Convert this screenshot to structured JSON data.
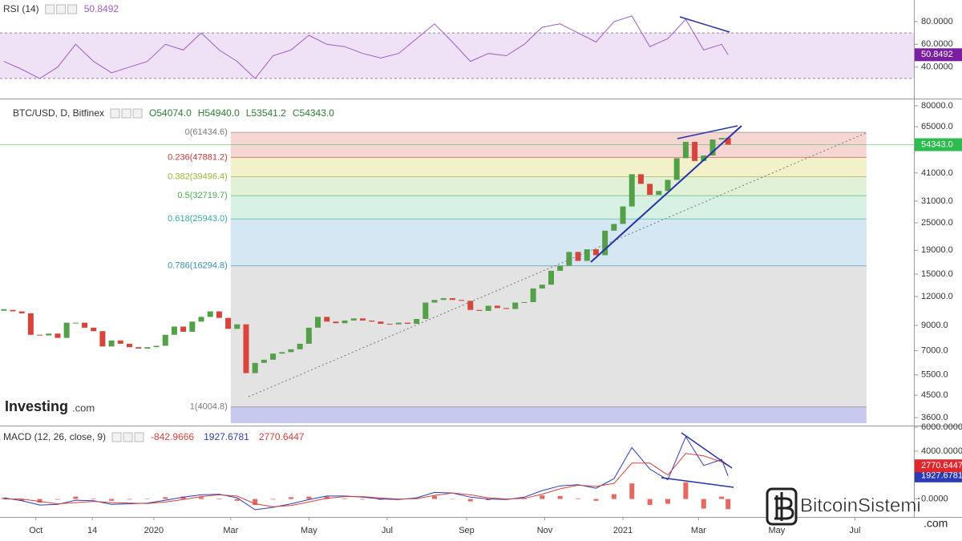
{
  "chart_data": [
    {
      "type": "line",
      "title": "RSI (14)",
      "x": [
        "2019-09-06",
        "2019-09-20",
        "2019-10-04",
        "2019-10-18",
        "2019-11-01",
        "2019-11-15",
        "2019-11-29",
        "2019-12-13",
        "2019-12-27",
        "2020-01-10",
        "2020-01-24",
        "2020-02-07",
        "2020-02-21",
        "2020-03-06",
        "2020-03-20",
        "2020-04-03",
        "2020-04-17",
        "2020-05-01",
        "2020-05-15",
        "2020-05-29",
        "2020-06-12",
        "2020-06-26",
        "2020-07-10",
        "2020-07-24",
        "2020-08-07",
        "2020-08-21",
        "2020-09-04",
        "2020-09-18",
        "2020-10-02",
        "2020-10-16",
        "2020-10-30",
        "2020-11-13",
        "2020-11-27",
        "2020-12-11",
        "2020-12-25",
        "2021-01-08",
        "2021-01-22",
        "2021-02-05",
        "2021-02-19",
        "2021-03-05",
        "2021-03-19",
        "2021-03-24"
      ],
      "series": [
        {
          "name": "RSI",
          "color": "#a05cc8",
          "badge": true,
          "badge_color": "#7b1fa2",
          "values": [
            45,
            38,
            30,
            40,
            60,
            45,
            35,
            40,
            45,
            60,
            55,
            70,
            55,
            45,
            30,
            50,
            55,
            68,
            60,
            58,
            52,
            48,
            52,
            65,
            78,
            62,
            45,
            52,
            50,
            60,
            75,
            78,
            70,
            62,
            80,
            85,
            58,
            65,
            82,
            55,
            60,
            50.8492
          ]
        }
      ],
      "band": [
        30,
        70
      ],
      "band_color": "#efe2f6",
      "xlim": [
        "2019-09-03",
        "2021-08-16"
      ],
      "ylim": [
        13,
        99
      ],
      "yticks": [
        {
          "value": 80,
          "label": "80.0000"
        },
        {
          "value": 60,
          "label": "60.0000"
        },
        {
          "value": 40,
          "label": "40.0000"
        }
      ]
    },
    {
      "type": "candlestick",
      "title": "BTC/USD, D, Bitfinex",
      "last_ohlc": [
        54074.0,
        54940.0,
        53541.2,
        54343.0
      ],
      "last_ohlc_labels": [
        "O54074.0",
        "H54940.0",
        "L53541.2",
        "C54343.0"
      ],
      "up_color": "#53a049",
      "down_color": "#d9443a",
      "x": [
        "2019-09-06",
        "2019-09-13",
        "2019-09-20",
        "2019-09-27",
        "2019-10-04",
        "2019-10-11",
        "2019-10-18",
        "2019-10-25",
        "2019-11-01",
        "2019-11-08",
        "2019-11-15",
        "2019-11-22",
        "2019-11-29",
        "2019-12-06",
        "2019-12-13",
        "2019-12-20",
        "2019-12-27",
        "2020-01-03",
        "2020-01-10",
        "2020-01-17",
        "2020-01-24",
        "2020-01-31",
        "2020-02-07",
        "2020-02-14",
        "2020-02-21",
        "2020-02-28",
        "2020-03-06",
        "2020-03-13",
        "2020-03-20",
        "2020-03-27",
        "2020-04-03",
        "2020-04-10",
        "2020-04-17",
        "2020-04-24",
        "2020-05-01",
        "2020-05-08",
        "2020-05-15",
        "2020-05-22",
        "2020-05-29",
        "2020-06-05",
        "2020-06-12",
        "2020-06-19",
        "2020-06-26",
        "2020-07-03",
        "2020-07-10",
        "2020-07-17",
        "2020-07-24",
        "2020-07-31",
        "2020-08-07",
        "2020-08-14",
        "2020-08-21",
        "2020-08-28",
        "2020-09-04",
        "2020-09-11",
        "2020-09-18",
        "2020-09-25",
        "2020-10-02",
        "2020-10-09",
        "2020-10-16",
        "2020-10-23",
        "2020-10-30",
        "2020-11-06",
        "2020-11-13",
        "2020-11-20",
        "2020-11-27",
        "2020-12-04",
        "2020-12-11",
        "2020-12-18",
        "2020-12-25",
        "2021-01-01",
        "2021-01-08",
        "2021-01-15",
        "2021-01-22",
        "2021-01-29",
        "2021-02-05",
        "2021-02-12",
        "2021-02-19",
        "2021-02-26",
        "2021-03-05",
        "2021-03-12",
        "2021-03-19",
        "2021-03-24"
      ],
      "close": [
        10500,
        10350,
        10150,
        8200,
        8150,
        8300,
        7950,
        9250,
        9250,
        8800,
        8500,
        7300,
        7750,
        7500,
        7250,
        7150,
        7250,
        7350,
        8200,
        8900,
        8450,
        9350,
        9800,
        10350,
        9700,
        8700,
        9100,
        5600,
        6200,
        6400,
        6800,
        6900,
        7100,
        7500,
        8800,
        9800,
        9350,
        9200,
        9450,
        9650,
        9450,
        9350,
        9150,
        9100,
        9250,
        9150,
        9600,
        11300,
        11600,
        11800,
        11600,
        11500,
        10500,
        10400,
        10950,
        10700,
        10600,
        11300,
        11350,
        13000,
        13500,
        15500,
        16300,
        18700,
        17100,
        19200,
        18100,
        23100,
        24700,
        29400,
        40500,
        36800,
        33000,
        34300,
        38300,
        47500,
        55900,
        46200,
        48800,
        57200,
        58100,
        54343.0
      ],
      "price_badge": {
        "value": 54343.0,
        "label": "54343.0",
        "color": "#2dbd4e"
      },
      "fib_x": [
        "2020-03-01",
        "2021-07-10"
      ],
      "fib_levels": [
        {
          "label": "0(61434.6)",
          "value": 61434.6,
          "color": "#7a7a7a",
          "fill": "#f6d6d2"
        },
        {
          "label": "0.236(47881.2)",
          "value": 47881.2,
          "color": "#c43b3b",
          "fill": "#f2f1c9"
        },
        {
          "label": "0.382(39496.4)",
          "value": 39496.4,
          "color": "#98b33a",
          "fill": "#e1f1d7"
        },
        {
          "label": "0.5(32719.7)",
          "value": 32719.7,
          "color": "#49ad4c",
          "fill": "#d6f1e4"
        },
        {
          "label": "0.618(25943.0)",
          "value": 25943.0,
          "color": "#3aa89f",
          "fill": "#d5e7f3"
        },
        {
          "label": "0.786(16294.8)",
          "value": 16294.8,
          "color": "#3b8db4",
          "fill": "#e3e3e3"
        },
        {
          "label": "1(4004.8)",
          "value": 4004.8,
          "color": "#7a7a7a",
          "fill": "#c7c9ef"
        }
      ],
      "log_scale": true,
      "xlim": [
        "2019-09-03",
        "2021-08-16"
      ],
      "ylim": [
        3350,
        84600
      ],
      "yticks": [
        {
          "value": 80000,
          "label": "80000.0"
        },
        {
          "value": 65000,
          "label": "65000.0"
        },
        {
          "value": 41000,
          "label": "41000.0"
        },
        {
          "value": 31000,
          "label": "31000.0"
        },
        {
          "value": 25000,
          "label": "25000.0"
        },
        {
          "value": 19000,
          "label": "19000.0"
        },
        {
          "value": 15000,
          "label": "15000.0"
        },
        {
          "value": 12000,
          "label": "12000.0"
        },
        {
          "value": 9000,
          "label": "9000.0"
        },
        {
          "value": 7000,
          "label": "7000.0"
        },
        {
          "value": 5500,
          "label": "5500.0"
        },
        {
          "value": 4500,
          "label": "4500.0"
        },
        {
          "value": 3600,
          "label": "3600.0"
        }
      ]
    },
    {
      "type": "line",
      "title": "MACD (12, 26, close, 9)",
      "x": [
        "2019-09-06",
        "2019-09-20",
        "2019-10-04",
        "2019-10-18",
        "2019-11-01",
        "2019-11-15",
        "2019-11-29",
        "2019-12-13",
        "2019-12-27",
        "2020-01-10",
        "2020-01-24",
        "2020-02-07",
        "2020-02-21",
        "2020-03-06",
        "2020-03-20",
        "2020-04-03",
        "2020-04-17",
        "2020-05-01",
        "2020-05-15",
        "2020-05-29",
        "2020-06-12",
        "2020-06-26",
        "2020-07-10",
        "2020-07-24",
        "2020-08-07",
        "2020-08-21",
        "2020-09-04",
        "2020-09-18",
        "2020-10-02",
        "2020-10-16",
        "2020-10-30",
        "2020-11-13",
        "2020-11-27",
        "2020-12-11",
        "2020-12-25",
        "2021-01-08",
        "2021-01-22",
        "2021-02-05",
        "2021-02-19",
        "2021-03-05",
        "2021-03-19",
        "2021-03-24"
      ],
      "series": [
        {
          "name": "Histogram",
          "type": "bar",
          "color": "#e0443a",
          "values": [
            100,
            -150,
            -300,
            -50,
            200,
            50,
            -150,
            -50,
            30,
            150,
            200,
            150,
            50,
            -150,
            -500,
            -50,
            150,
            200,
            200,
            50,
            -50,
            -80,
            -50,
            70,
            250,
            0,
            -200,
            -100,
            -50,
            100,
            300,
            250,
            50,
            -150,
            400,
            1300,
            -500,
            -400,
            1400,
            -800,
            200,
            -842.9666
          ]
        },
        {
          "name": "MACD",
          "color": "#2b3bb3",
          "badge": true,
          "badge_color": "#2b3bb3",
          "values": [
            100,
            -150,
            -500,
            -450,
            -100,
            -150,
            -450,
            -400,
            -350,
            -100,
            150,
            350,
            400,
            100,
            -900,
            -700,
            -400,
            -50,
            250,
            250,
            150,
            0,
            -50,
            100,
            550,
            500,
            150,
            0,
            -50,
            150,
            700,
            1100,
            1200,
            900,
            1700,
            4300,
            2500,
            1600,
            5200,
            2800,
            3300,
            1927.6781
          ]
        },
        {
          "name": "Signal",
          "color": "#d8403a",
          "badge": true,
          "badge_color": "#e0262b",
          "values": [
            0,
            0,
            -200,
            -400,
            -300,
            -200,
            -300,
            -350,
            -380,
            -250,
            -50,
            200,
            350,
            250,
            -400,
            -650,
            -550,
            -250,
            50,
            200,
            200,
            80,
            0,
            30,
            300,
            500,
            350,
            100,
            0,
            50,
            400,
            850,
            1150,
            1050,
            1300,
            3000,
            3000,
            2000,
            3800,
            3600,
            3100,
            2770.6447
          ]
        }
      ],
      "xlim": [
        "2019-09-03",
        "2021-08-16"
      ],
      "ylim": [
        -1300,
        6000
      ],
      "yticks": [
        {
          "value": 6000,
          "label": "6000.0000"
        },
        {
          "value": 4000,
          "label": "4000.0000"
        },
        {
          "value": 0,
          "label": "0.0000"
        }
      ],
      "xticks": [
        {
          "value": "2019-10-01",
          "label": "Oct"
        },
        {
          "value": "2019-11-14",
          "label": "14"
        },
        {
          "value": "2020-01-01",
          "label": "2020"
        },
        {
          "value": "2020-03-01",
          "label": "Mar"
        },
        {
          "value": "2020-05-01",
          "label": "May"
        },
        {
          "value": "2020-07-01",
          "label": "Jul"
        },
        {
          "value": "2020-09-01",
          "label": "Sep"
        },
        {
          "value": "2020-11-01",
          "label": "Nov"
        },
        {
          "value": "2021-01-01",
          "label": "2021"
        },
        {
          "value": "2021-03-01",
          "label": "Mar"
        },
        {
          "value": "2021-05-01",
          "label": "May"
        },
        {
          "value": "2021-07-01",
          "label": "Jul"
        }
      ]
    }
  ],
  "logos": {
    "investing": "Investing",
    "investing_suffix": ".com",
    "bitcoinsistemi": "BitcoinSistemi",
    "bitcoinsistemi_suffix": ".com"
  }
}
